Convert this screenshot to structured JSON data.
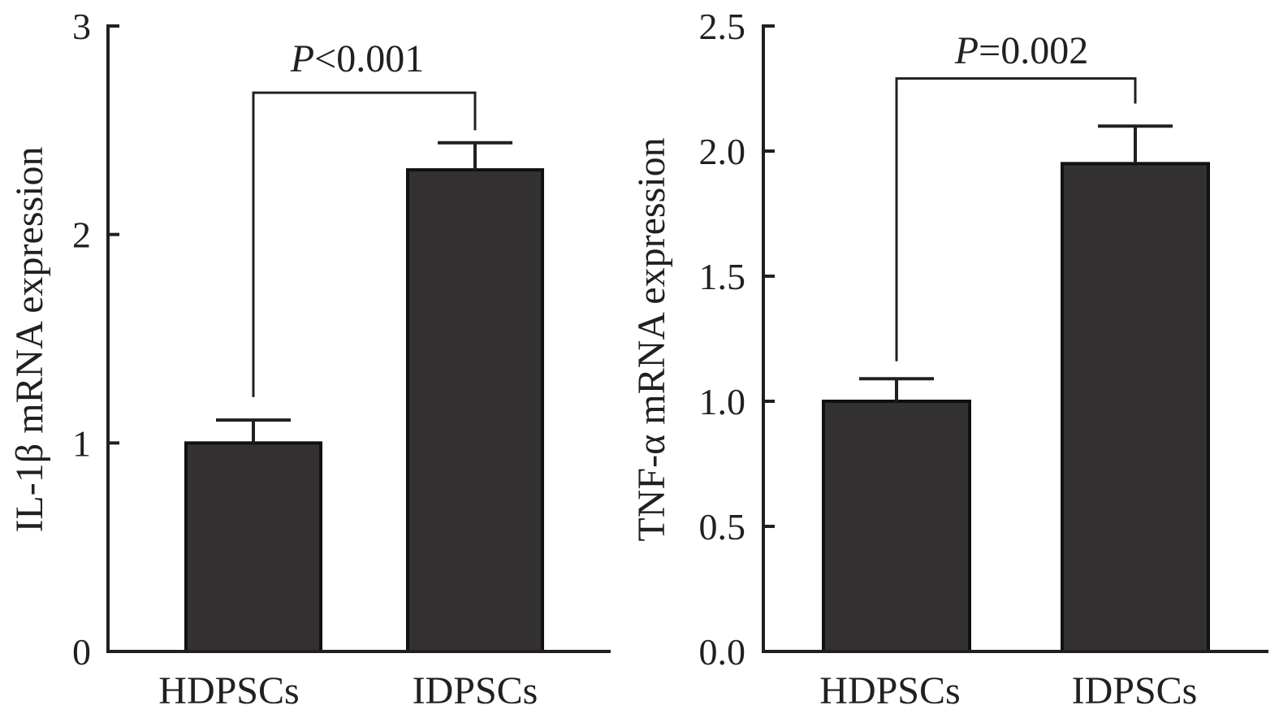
{
  "colors": {
    "bar": "#333132",
    "ink": "#231f20"
  },
  "chart_data": [
    {
      "type": "bar",
      "title": "",
      "categories": [
        "HDPSCs",
        "IDPSCs"
      ],
      "values": [
        1.0,
        2.31
      ],
      "errors": [
        0.11,
        0.13
      ],
      "ylabel": "IL-1β mRNA expression",
      "ylim": [
        0,
        3
      ],
      "yticks": [
        0,
        1,
        2,
        3
      ],
      "ytick_labels": [
        "0",
        "1",
        "2",
        "3"
      ],
      "significance": {
        "label_italic": "P",
        "label_rest": "<0.001",
        "bracket_level": 2.68,
        "left_drop_to": 1.22,
        "right_drop_to": 2.5
      }
    },
    {
      "type": "bar",
      "title": "",
      "categories": [
        "HDPSCs",
        "IDPSCs"
      ],
      "values": [
        1.0,
        1.95
      ],
      "errors": [
        0.09,
        0.15
      ],
      "ylabel": "TNF-α mRNA expression",
      "ylim": [
        0,
        2.5
      ],
      "yticks": [
        0,
        0.5,
        1.0,
        1.5,
        2.0,
        2.5
      ],
      "ytick_labels": [
        "0.0",
        "0.5",
        "1.0",
        "1.5",
        "2.0",
        "2.5"
      ],
      "significance": {
        "label_italic": "P",
        "label_rest": "=0.002",
        "bracket_level": 2.29,
        "left_drop_to": 1.16,
        "right_drop_to": 2.19
      }
    }
  ]
}
